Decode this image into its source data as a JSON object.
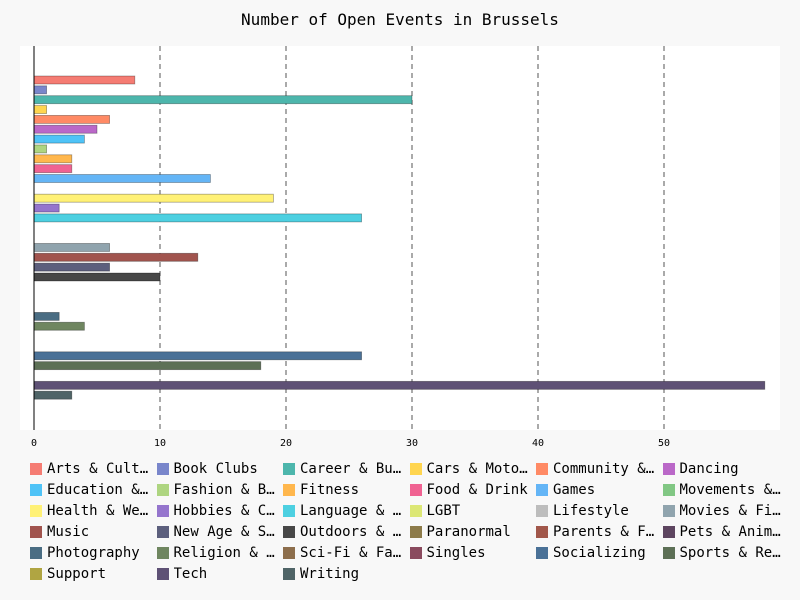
{
  "chart_data": {
    "type": "bar",
    "orientation": "horizontal",
    "title": "Number of Open Events in Brussels",
    "xlabel": "",
    "ylabel": "",
    "xlim": [
      0,
      58
    ],
    "x_ticks": [
      0,
      10,
      20,
      30,
      40,
      50
    ],
    "grid": "vertical dashed",
    "legend_position": "bottom",
    "series": [
      {
        "name": "Arts & Culture",
        "value": 8,
        "color": "#f57c73"
      },
      {
        "name": "Book Clubs",
        "value": 1,
        "color": "#7986cb"
      },
      {
        "name": "Career & Business",
        "value": 30,
        "color": "#4db6ac"
      },
      {
        "name": "Cars & Motorcycles",
        "value": 1,
        "color": "#ffd54f"
      },
      {
        "name": "Community & Environment",
        "value": 6,
        "color": "#ff8a65"
      },
      {
        "name": "Dancing",
        "value": 5,
        "color": "#ba68c8"
      },
      {
        "name": "Education & Learning",
        "value": 4,
        "color": "#4fc3f7"
      },
      {
        "name": "Fashion & Beauty",
        "value": 1,
        "color": "#aed581"
      },
      {
        "name": "Fitness",
        "value": 3,
        "color": "#ffb74d"
      },
      {
        "name": "Food & Drink",
        "value": 3,
        "color": "#f06292"
      },
      {
        "name": "Games",
        "value": 14,
        "color": "#64b5f6"
      },
      {
        "name": "Movements & Politics",
        "value": 0,
        "color": "#81c784"
      },
      {
        "name": "Health & Wellbeing",
        "value": 19,
        "color": "#fff176"
      },
      {
        "name": "Hobbies & Crafts",
        "value": 2,
        "color": "#9575cd"
      },
      {
        "name": "Language & Ethnic Identity",
        "value": 26,
        "color": "#4dd0e1"
      },
      {
        "name": "LGBT",
        "value": 0,
        "color": "#dce775"
      },
      {
        "name": "Lifestyle",
        "value": 0,
        "color": "#bdbdbd"
      },
      {
        "name": "Movies & Film",
        "value": 6,
        "color": "#90a4ae"
      },
      {
        "name": "Music",
        "value": 13,
        "color": "#a1544e"
      },
      {
        "name": "New Age & Spirituality",
        "value": 6,
        "color": "#5c5f7d"
      },
      {
        "name": "Outdoors & Adventure",
        "value": 10,
        "color": "#474747"
      },
      {
        "name": "Paranormal",
        "value": 0,
        "color": "#8d7b4a"
      },
      {
        "name": "Parents & Family",
        "value": 0,
        "color": "#a1574a"
      },
      {
        "name": "Pets & Animals",
        "value": 0,
        "color": "#5d4560"
      },
      {
        "name": "Photography",
        "value": 2,
        "color": "#4a6d83"
      },
      {
        "name": "Religion & Beliefs",
        "value": 4,
        "color": "#6f8660"
      },
      {
        "name": "Sci-Fi & Fantasy",
        "value": 0,
        "color": "#8d6e4c"
      },
      {
        "name": "Singles",
        "value": 0,
        "color": "#8a4a5e"
      },
      {
        "name": "Socializing",
        "value": 26,
        "color": "#4a7197"
      },
      {
        "name": "Sports & Recreation",
        "value": 18,
        "color": "#5d7056"
      },
      {
        "name": "Support",
        "value": 0,
        "color": "#b0a542"
      },
      {
        "name": "Tech",
        "value": 58,
        "color": "#5e5175"
      },
      {
        "name": "Writing",
        "value": 3,
        "color": "#4f6467"
      }
    ],
    "legend_labels": [
      "Arts & Cultu…",
      "Book Clubs",
      "Career & Bus…",
      "Cars & Motor…",
      "Community & …",
      "Dancing",
      "Education & …",
      "Fashion & Be…",
      "Fitness",
      "Food & Drink",
      "Games",
      "Movements & …",
      "Health & Wel…",
      "Hobbies & Cr…",
      "Language & E…",
      "LGBT",
      "Lifestyle",
      "Movies & Film",
      "Music",
      "New Age & Sp…",
      "Outdoors & A…",
      "Paranormal",
      "Parents & Fa…",
      "Pets & Anima…",
      "Photography",
      "Religion & B…",
      "Sci-Fi & Fan…",
      "Singles",
      "Socializing",
      "Sports & Rec…",
      "Support",
      "Tech",
      "Writing"
    ]
  }
}
